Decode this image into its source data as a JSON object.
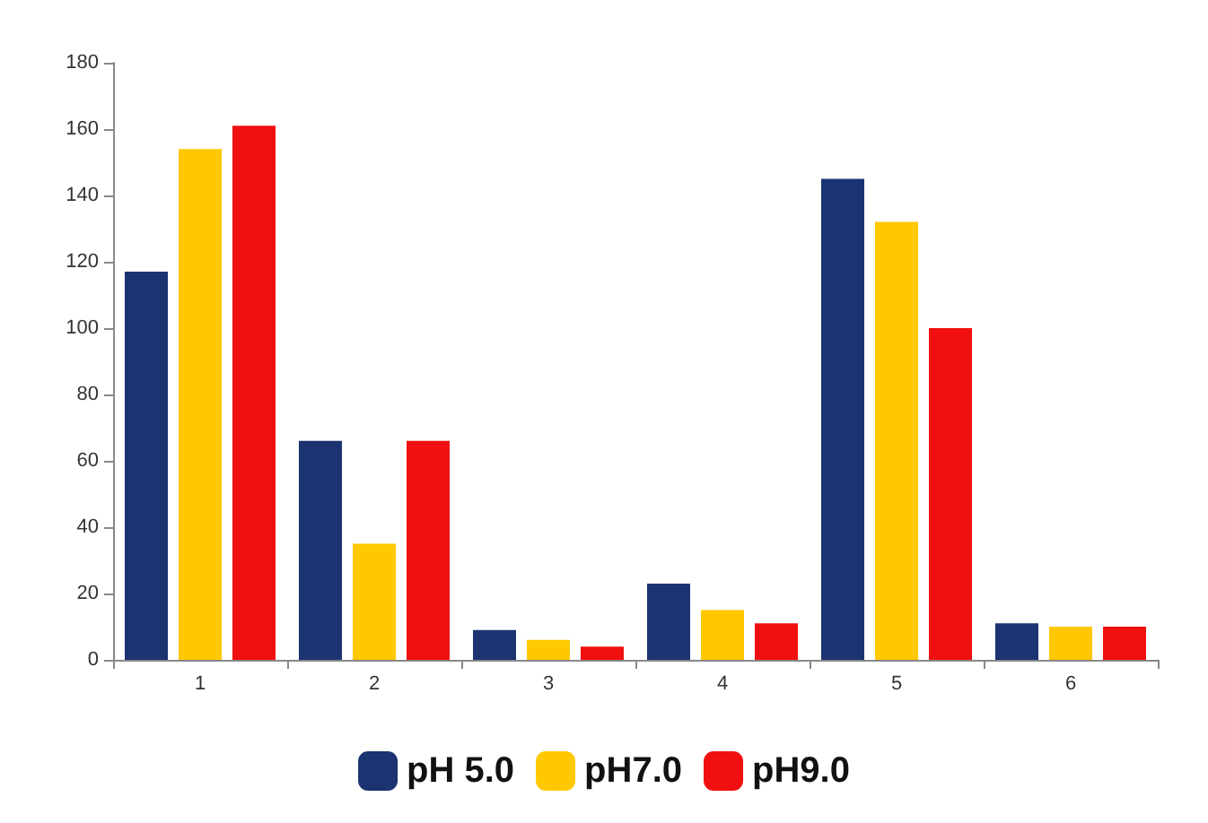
{
  "chart_data": {
    "type": "bar",
    "categories": [
      "1",
      "2",
      "3",
      "4",
      "5",
      "6"
    ],
    "series": [
      {
        "name": "pH 5.0",
        "color": "#1b3370",
        "values": [
          117,
          66,
          9,
          23,
          145,
          11
        ]
      },
      {
        "name": "pH7.0",
        "color": "#ffc800",
        "values": [
          154,
          35,
          6,
          15,
          132,
          10
        ]
      },
      {
        "name": "pH9.0",
        "color": "#f01010",
        "values": [
          161,
          66,
          4,
          11,
          100,
          10
        ]
      }
    ],
    "ylim": [
      0,
      180
    ],
    "yticks": [
      0,
      20,
      40,
      60,
      80,
      100,
      120,
      140,
      160,
      180
    ],
    "grid": false,
    "legend": "bottom"
  }
}
